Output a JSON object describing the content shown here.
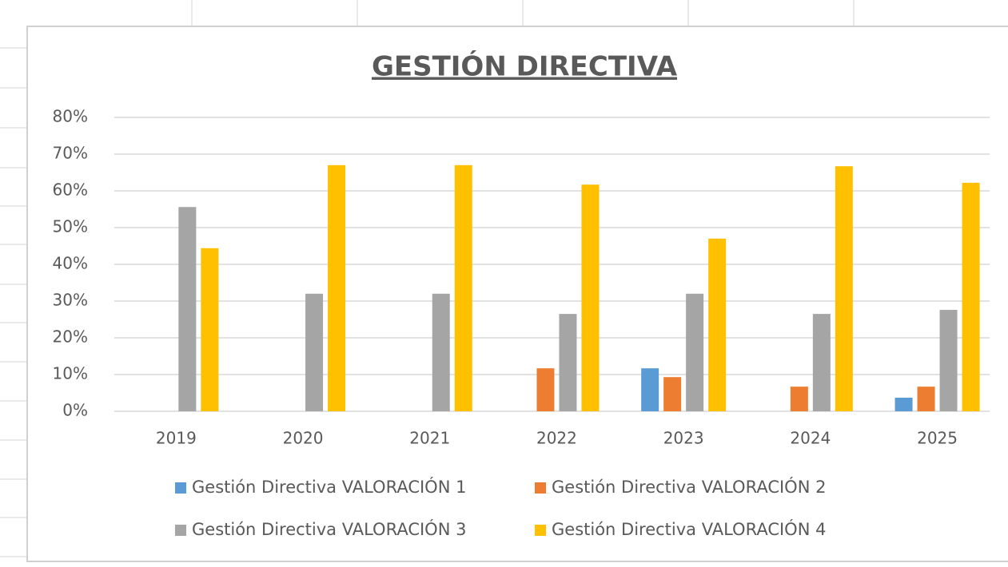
{
  "chart_data": {
    "type": "bar",
    "title": "GESTIÓN DIRECTIVA",
    "categories": [
      "2019",
      "2020",
      "2021",
      "2022",
      "2023",
      "2024",
      "2025"
    ],
    "series": [
      {
        "name": "Gestión Directiva VALORACIÓN 1",
        "color": "#5b9bd5",
        "values": [
          0,
          0,
          0,
          0,
          11.7,
          0,
          3.7
        ]
      },
      {
        "name": "Gestión Directiva VALORACIÓN 2",
        "color": "#ed7d31",
        "values": [
          0,
          0,
          0,
          11.7,
          9.3,
          6.7,
          6.7
        ]
      },
      {
        "name": "Gestión Directiva VALORACIÓN 3",
        "color": "#a5a5a5",
        "values": [
          55.6,
          32,
          32,
          26.5,
          32,
          26.5,
          27.6
        ]
      },
      {
        "name": "Gestión Directiva VALORACIÓN 4",
        "color": "#ffc000",
        "values": [
          44.4,
          67,
          67,
          61.7,
          47,
          66.7,
          62.2
        ]
      }
    ],
    "ylim": [
      0,
      80
    ],
    "yticks": [
      {
        "value": 0,
        "label": "0%"
      },
      {
        "value": 10,
        "label": "10%"
      },
      {
        "value": 20,
        "label": "20%"
      },
      {
        "value": 30,
        "label": "30%"
      },
      {
        "value": 40,
        "label": "40%"
      },
      {
        "value": 50,
        "label": "50%"
      },
      {
        "value": 60,
        "label": "60%"
      },
      {
        "value": 70,
        "label": "70%"
      },
      {
        "value": 80,
        "label": "80%"
      }
    ],
    "grid": true,
    "legend": "bottom"
  }
}
